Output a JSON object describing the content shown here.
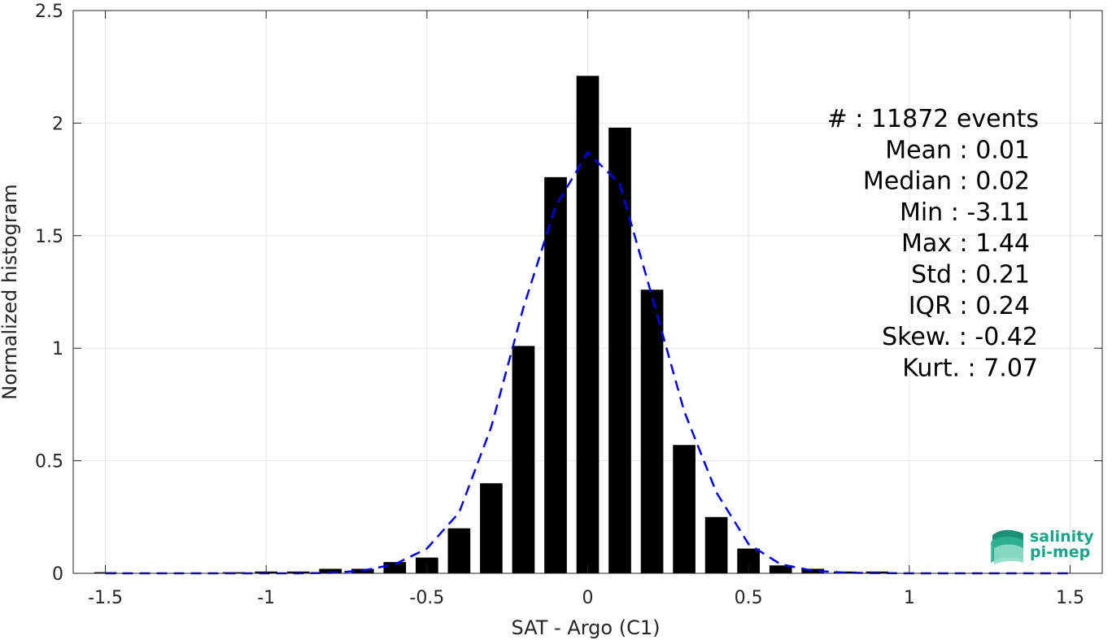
{
  "chart_data": {
    "type": "bar",
    "xlabel": "SAT - Argo (C1)",
    "ylabel": "Normalized histogram",
    "xlim": [
      -1.6,
      1.6
    ],
    "ylim": [
      0,
      2.5
    ],
    "xticks": [
      -1.5,
      -1,
      -0.5,
      0,
      0.5,
      1,
      1.5
    ],
    "xtick_labels": [
      "-1.5",
      "-1",
      "-0.5",
      "0",
      "0.5",
      "1",
      "1.5"
    ],
    "yticks": [
      0,
      0.5,
      1,
      1.5,
      2,
      2.5
    ],
    "ytick_labels": [
      "0",
      "0.5",
      "1",
      "1.5",
      "2",
      "2.5"
    ],
    "grid": true,
    "bar_width": 0.07,
    "bars": {
      "x": [
        -1.5,
        -1.1,
        -1.0,
        -0.9,
        -0.8,
        -0.7,
        -0.6,
        -0.5,
        -0.4,
        -0.3,
        -0.2,
        -0.1,
        0.0,
        0.1,
        0.2,
        0.3,
        0.4,
        0.5,
        0.6,
        0.7,
        0.8,
        0.9
      ],
      "values": [
        0.005,
        0.005,
        0.008,
        0.008,
        0.02,
        0.02,
        0.05,
        0.07,
        0.2,
        0.4,
        1.01,
        1.76,
        2.21,
        1.98,
        1.26,
        0.57,
        0.25,
        0.11,
        0.035,
        0.02,
        0.008,
        0.008
      ],
      "color": "#000000"
    },
    "fit_curve": {
      "style": "dashed",
      "color": "#0000ff",
      "x": [
        -1.5,
        -1.4,
        -1.3,
        -1.2,
        -1.1,
        -1.0,
        -0.9,
        -0.8,
        -0.7,
        -0.6,
        -0.5,
        -0.4,
        -0.3,
        -0.2,
        -0.1,
        0.0,
        0.1,
        0.2,
        0.3,
        0.4,
        0.5,
        0.6,
        0.7,
        0.8,
        0.9,
        1.0,
        1.1,
        1.2,
        1.3,
        1.4,
        1.5
      ],
      "y": [
        0,
        0,
        0,
        0,
        0,
        0,
        0,
        0.002,
        0.012,
        0.04,
        0.11,
        0.27,
        0.65,
        1.18,
        1.63,
        1.87,
        1.73,
        1.23,
        0.72,
        0.36,
        0.13,
        0.04,
        0.012,
        0.003,
        0.001,
        0,
        0,
        0,
        0,
        0,
        0
      ]
    },
    "stats": [
      {
        "label": "#  : 11872 events"
      },
      {
        "label": "Mean : 0.01"
      },
      {
        "label": "Median : 0.02"
      },
      {
        "label": "Min : -3.11"
      },
      {
        "label": "Max : 1.44"
      },
      {
        "label": "Std : 0.21"
      },
      {
        "label": "IQR : 0.24"
      },
      {
        "label": "Skew. : -0.42"
      },
      {
        "label": "Kurt. : 7.07"
      }
    ]
  },
  "logo": {
    "line1": "salinity",
    "line2": "pi-mep",
    "color": "#1aa58a"
  }
}
